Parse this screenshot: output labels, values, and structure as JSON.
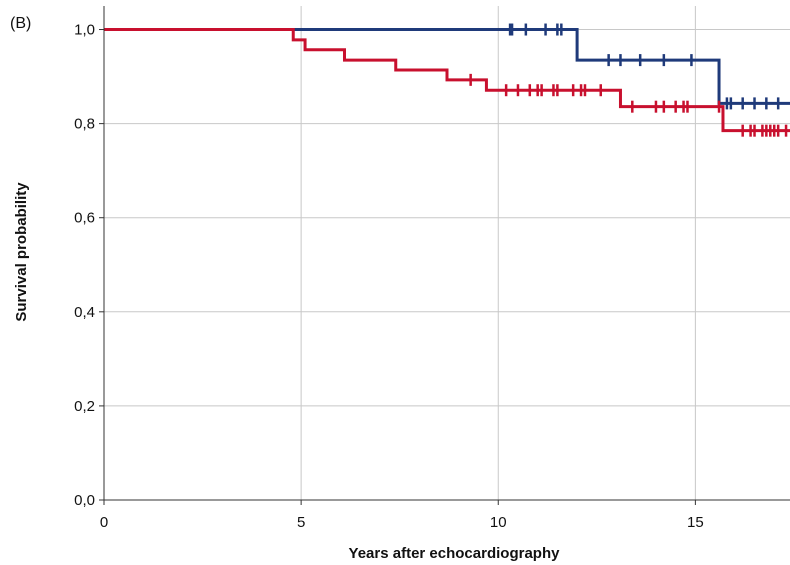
{
  "panel_label": "(B)",
  "chart_data": {
    "type": "line",
    "subtype": "kaplan-meier step curve with censor marks",
    "xlabel": "Years after echocardiography",
    "ylabel": "Survival probability",
    "xlim": [
      0,
      17.4
    ],
    "ylim": [
      0,
      1.05
    ],
    "x_ticks": [
      0,
      5,
      10,
      15
    ],
    "x_tick_labels": [
      "0",
      "5",
      "10",
      "15"
    ],
    "y_ticks": [
      0,
      0.2,
      0.4,
      0.6,
      0.8,
      1.0
    ],
    "y_tick_labels": [
      "0,0",
      "0,2",
      "0,4",
      "0,6",
      "0,8",
      "1,0"
    ],
    "grid": "vertical and horizontal at ticks",
    "legend": "none",
    "series": [
      {
        "color": "#1f3a7a",
        "steps": [
          [
            0,
            1.0
          ],
          [
            12.0,
            0.935
          ],
          [
            15.6,
            0.843
          ],
          [
            17.4,
            0.843
          ]
        ],
        "censor_x": [
          10.3,
          10.35,
          10.7,
          11.2,
          11.5,
          11.6,
          12.8,
          13.1,
          13.6,
          14.2,
          14.9,
          15.8,
          15.9,
          16.2,
          16.5,
          16.8,
          17.1
        ]
      },
      {
        "color": "#c8102e",
        "steps": [
          [
            0,
            1.0
          ],
          [
            4.8,
            0.978
          ],
          [
            5.1,
            0.957
          ],
          [
            6.1,
            0.935
          ],
          [
            7.4,
            0.914
          ],
          [
            8.7,
            0.893
          ],
          [
            9.7,
            0.871
          ],
          [
            13.1,
            0.836
          ],
          [
            15.7,
            0.785
          ],
          [
            17.4,
            0.785
          ]
        ],
        "censor_x": [
          9.3,
          10.2,
          10.5,
          10.8,
          11.0,
          11.1,
          11.4,
          11.5,
          11.9,
          12.1,
          12.2,
          12.6,
          13.4,
          14.0,
          14.2,
          14.5,
          14.7,
          14.8,
          15.6,
          16.2,
          16.4,
          16.5,
          16.7,
          16.8,
          16.9,
          17.0,
          17.1,
          17.3
        ]
      }
    ]
  }
}
